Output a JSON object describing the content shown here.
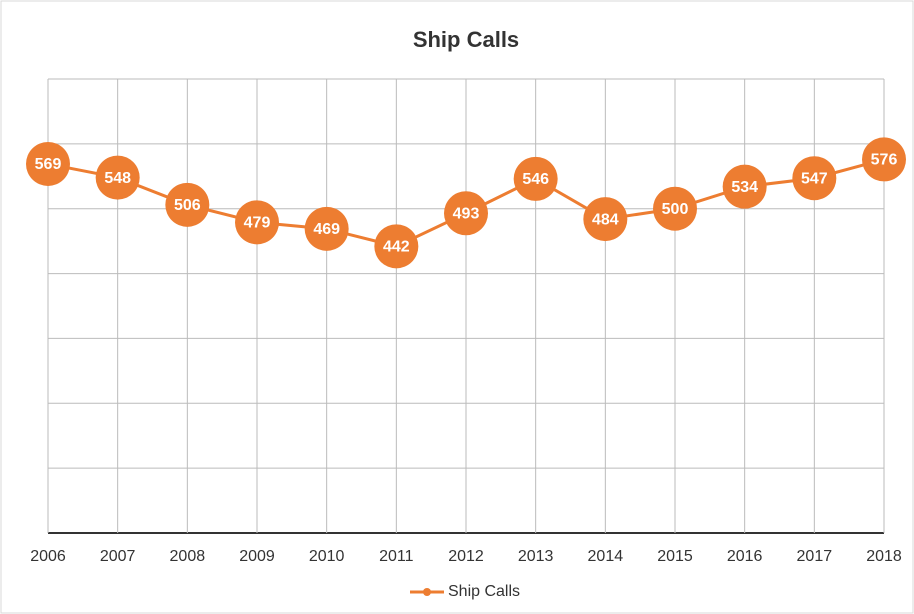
{
  "chart_data": {
    "type": "line",
    "title": "Ship Calls",
    "categories": [
      "2006",
      "2007",
      "2008",
      "2009",
      "2010",
      "2011",
      "2012",
      "2013",
      "2014",
      "2015",
      "2016",
      "2017",
      "2018"
    ],
    "series": [
      {
        "name": "Ship Calls",
        "color": "#ed7d31",
        "values": [
          569,
          548,
          506,
          479,
          469,
          442,
          493,
          546,
          484,
          500,
          534,
          547,
          576
        ]
      }
    ],
    "ylim": [
      0,
      700
    ],
    "ygrid": [
      0,
      100,
      200,
      300,
      400,
      500,
      600,
      700
    ],
    "grid": true,
    "legend": "bottom"
  }
}
